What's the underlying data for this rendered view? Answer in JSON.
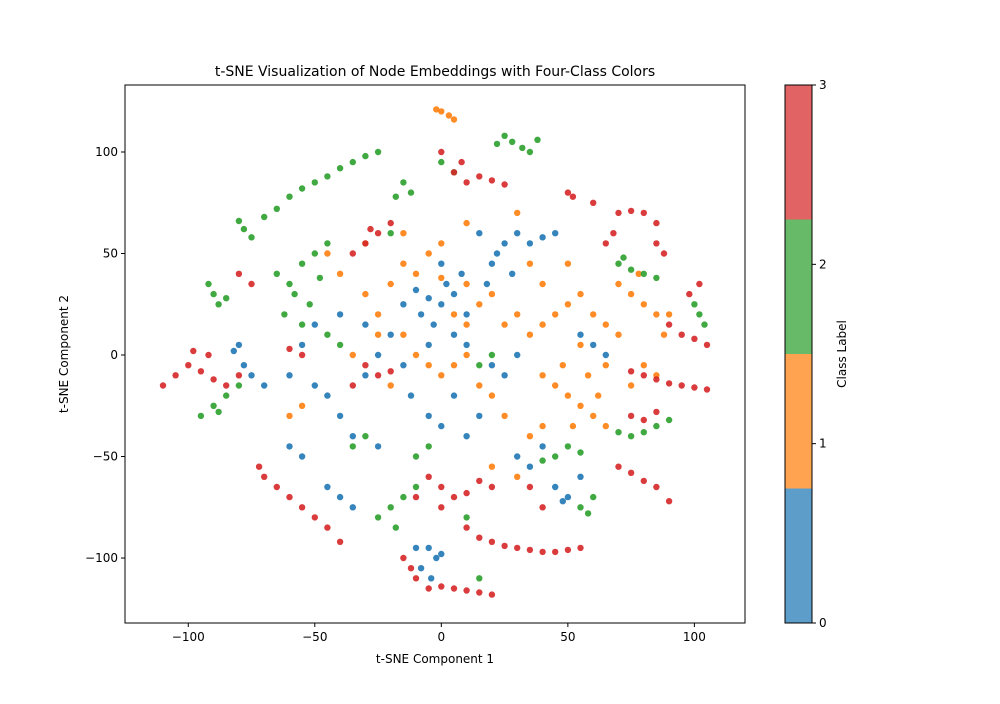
{
  "chart_data": {
    "type": "scatter",
    "title": "t-SNE Visualization of Node Embeddings with Four-Class Colors",
    "xlabel": "t-SNE Component 1",
    "ylabel": "t-SNE Component 2",
    "xlim": [
      -125,
      120
    ],
    "ylim": [
      -132,
      133
    ],
    "x_ticks": [
      -100,
      -50,
      0,
      50,
      100
    ],
    "x_tick_labels": [
      "−100",
      "−50",
      "0",
      "50",
      "100"
    ],
    "y_ticks": [
      -100,
      -50,
      0,
      50,
      100
    ],
    "y_tick_labels": [
      "−100",
      "−50",
      "0",
      "50",
      "100"
    ],
    "grid": false,
    "colorbar": {
      "label": "Class Label",
      "ticks": [
        "0",
        "1",
        "2",
        "3"
      ],
      "colors": [
        "#1f77b4",
        "#ff7f0e",
        "#2ca02c",
        "#d62728"
      ]
    },
    "series": [
      {
        "class": 0,
        "color": "#1f77b4",
        "points": [
          [
            -5,
            28
          ],
          [
            0,
            25
          ],
          [
            -8,
            20
          ],
          [
            5,
            30
          ],
          [
            -10,
            32
          ],
          [
            10,
            20
          ],
          [
            -3,
            15
          ],
          [
            2,
            35
          ],
          [
            -15,
            25
          ],
          [
            8,
            40
          ],
          [
            20,
            45
          ],
          [
            25,
            55
          ],
          [
            30,
            60
          ],
          [
            35,
            55
          ],
          [
            40,
            58
          ],
          [
            15,
            60
          ],
          [
            22,
            50
          ],
          [
            45,
            60
          ],
          [
            28,
            40
          ],
          [
            18,
            35
          ],
          [
            -20,
            10
          ],
          [
            -25,
            0
          ],
          [
            -15,
            -5
          ],
          [
            -30,
            -10
          ],
          [
            -12,
            -20
          ],
          [
            -5,
            -30
          ],
          [
            0,
            -35
          ],
          [
            10,
            -40
          ],
          [
            15,
            -30
          ],
          [
            5,
            -20
          ],
          [
            -35,
            -40
          ],
          [
            -25,
            -45
          ],
          [
            -40,
            -30
          ],
          [
            -45,
            -20
          ],
          [
            -50,
            -15
          ],
          [
            -60,
            -10
          ],
          [
            -55,
            5
          ],
          [
            -50,
            15
          ],
          [
            -40,
            20
          ],
          [
            -30,
            15
          ],
          [
            -80,
            5
          ],
          [
            -78,
            -5
          ],
          [
            -82,
            2
          ],
          [
            -75,
            -10
          ],
          [
            -70,
            -15
          ],
          [
            30,
            -50
          ],
          [
            35,
            -55
          ],
          [
            40,
            -45
          ],
          [
            50,
            -70
          ],
          [
            45,
            -65
          ],
          [
            55,
            -60
          ],
          [
            48,
            -72
          ],
          [
            -5,
            -95
          ],
          [
            -2,
            -100
          ],
          [
            -8,
            -105
          ],
          [
            0,
            -98
          ],
          [
            -4,
            -110
          ],
          [
            -10,
            -95
          ],
          [
            -45,
            -65
          ],
          [
            -40,
            -70
          ],
          [
            -35,
            -75
          ],
          [
            -55,
            -50
          ],
          [
            -60,
            -45
          ],
          [
            60,
            5
          ],
          [
            55,
            10
          ],
          [
            65,
            0
          ],
          [
            25,
            -10
          ],
          [
            20,
            -5
          ],
          [
            30,
            0
          ],
          [
            10,
            5
          ],
          [
            5,
            10
          ],
          [
            -5,
            5
          ],
          [
            0,
            45
          ]
        ]
      },
      {
        "class": 1,
        "color": "#ff7f0e",
        "points": [
          [
            0,
            120
          ],
          [
            3,
            118
          ],
          [
            -2,
            121
          ],
          [
            5,
            116
          ],
          [
            -30,
            30
          ],
          [
            -20,
            35
          ],
          [
            -10,
            40
          ],
          [
            -25,
            20
          ],
          [
            -15,
            45
          ],
          [
            -5,
            50
          ],
          [
            0,
            38
          ],
          [
            10,
            35
          ],
          [
            15,
            25
          ],
          [
            20,
            30
          ],
          [
            25,
            15
          ],
          [
            30,
            20
          ],
          [
            35,
            10
          ],
          [
            40,
            15
          ],
          [
            45,
            20
          ],
          [
            50,
            25
          ],
          [
            55,
            30
          ],
          [
            60,
            20
          ],
          [
            65,
            15
          ],
          [
            70,
            10
          ],
          [
            40,
            -10
          ],
          [
            45,
            -15
          ],
          [
            50,
            -20
          ],
          [
            55,
            -25
          ],
          [
            60,
            -30
          ],
          [
            48,
            -5
          ],
          [
            58,
            -10
          ],
          [
            62,
            -20
          ],
          [
            65,
            -35
          ],
          [
            52,
            -35
          ],
          [
            -10,
            0
          ],
          [
            -5,
            -5
          ],
          [
            0,
            -10
          ],
          [
            5,
            -5
          ],
          [
            10,
            0
          ],
          [
            15,
            -15
          ],
          [
            20,
            -20
          ],
          [
            -20,
            -15
          ],
          [
            -15,
            10
          ],
          [
            -25,
            10
          ],
          [
            75,
            30
          ],
          [
            80,
            25
          ],
          [
            85,
            20
          ],
          [
            70,
            35
          ],
          [
            78,
            40
          ],
          [
            90,
            20
          ],
          [
            88,
            10
          ],
          [
            -15,
            60
          ],
          [
            10,
            65
          ],
          [
            30,
            70
          ],
          [
            35,
            -40
          ],
          [
            40,
            -35
          ],
          [
            30,
            -60
          ],
          [
            20,
            -55
          ],
          [
            -35,
            0
          ],
          [
            80,
            -5
          ],
          [
            85,
            -10
          ],
          [
            75,
            -15
          ],
          [
            0,
            55
          ],
          [
            -40,
            40
          ],
          [
            -45,
            50
          ],
          [
            -30,
            55
          ],
          [
            40,
            35
          ],
          [
            35,
            45
          ],
          [
            25,
            -30
          ],
          [
            -60,
            -30
          ],
          [
            -55,
            -25
          ],
          [
            10,
            15
          ],
          [
            5,
            20
          ],
          [
            50,
            45
          ],
          [
            55,
            5
          ],
          [
            65,
            -5
          ]
        ]
      },
      {
        "class": 2,
        "color": "#2ca02c",
        "points": [
          [
            -60,
            78
          ],
          [
            -55,
            82
          ],
          [
            -50,
            85
          ],
          [
            -45,
            88
          ],
          [
            -40,
            92
          ],
          [
            -35,
            95
          ],
          [
            -30,
            98
          ],
          [
            -25,
            100
          ],
          [
            -65,
            72
          ],
          [
            -70,
            68
          ],
          [
            -80,
            66
          ],
          [
            -78,
            62
          ],
          [
            -75,
            58
          ],
          [
            -90,
            30
          ],
          [
            -88,
            25
          ],
          [
            -92,
            35
          ],
          [
            -85,
            28
          ],
          [
            -65,
            40
          ],
          [
            -60,
            35
          ],
          [
            -55,
            45
          ],
          [
            -50,
            50
          ],
          [
            -45,
            55
          ],
          [
            -58,
            30
          ],
          [
            -52,
            25
          ],
          [
            -48,
            38
          ],
          [
            -62,
            20
          ],
          [
            -55,
            15
          ],
          [
            25,
            108
          ],
          [
            28,
            105
          ],
          [
            32,
            102
          ],
          [
            22,
            104
          ],
          [
            35,
            100
          ],
          [
            38,
            106
          ],
          [
            -15,
            85
          ],
          [
            -12,
            80
          ],
          [
            -18,
            78
          ],
          [
            0,
            95
          ],
          [
            5,
            90
          ],
          [
            70,
            45
          ],
          [
            75,
            42
          ],
          [
            80,
            40
          ],
          [
            85,
            38
          ],
          [
            72,
            48
          ],
          [
            -95,
            -30
          ],
          [
            -90,
            -25
          ],
          [
            -85,
            -20
          ],
          [
            -80,
            -15
          ],
          [
            -88,
            -28
          ],
          [
            -20,
            -75
          ],
          [
            -15,
            -70
          ],
          [
            -10,
            -65
          ],
          [
            -25,
            -80
          ],
          [
            -18,
            -85
          ],
          [
            75,
            -40
          ],
          [
            80,
            -38
          ],
          [
            85,
            -35
          ],
          [
            90,
            -32
          ],
          [
            70,
            -38
          ],
          [
            45,
            -50
          ],
          [
            50,
            -45
          ],
          [
            55,
            -48
          ],
          [
            40,
            -52
          ],
          [
            55,
            -75
          ],
          [
            58,
            -78
          ],
          [
            60,
            -70
          ],
          [
            20,
            0
          ],
          [
            15,
            -5
          ],
          [
            -10,
            -50
          ],
          [
            -5,
            -45
          ],
          [
            -30,
            -40
          ],
          [
            -35,
            -45
          ],
          [
            100,
            25
          ],
          [
            102,
            20
          ],
          [
            104,
            15
          ],
          [
            -45,
            10
          ],
          [
            -40,
            5
          ],
          [
            -20,
            60
          ],
          [
            10,
            -80
          ],
          [
            15,
            -110
          ]
        ]
      },
      {
        "class": 3,
        "color": "#d62728",
        "points": [
          [
            5,
            90
          ],
          [
            10,
            85
          ],
          [
            15,
            88
          ],
          [
            20,
            86
          ],
          [
            25,
            84
          ],
          [
            8,
            95
          ],
          [
            0,
            100
          ],
          [
            -30,
            55
          ],
          [
            -25,
            60
          ],
          [
            -20,
            65
          ],
          [
            -35,
            50
          ],
          [
            -28,
            62
          ],
          [
            70,
            70
          ],
          [
            75,
            71
          ],
          [
            80,
            70
          ],
          [
            85,
            65
          ],
          [
            68,
            60
          ],
          [
            65,
            55
          ],
          [
            85,
            55
          ],
          [
            88,
            50
          ],
          [
            -110,
            -15
          ],
          [
            -105,
            -10
          ],
          [
            -100,
            -5
          ],
          [
            -95,
            -8
          ],
          [
            -90,
            -12
          ],
          [
            -85,
            -15
          ],
          [
            -80,
            -10
          ],
          [
            -98,
            2
          ],
          [
            -92,
            0
          ],
          [
            -70,
            -60
          ],
          [
            -65,
            -65
          ],
          [
            -60,
            -70
          ],
          [
            -55,
            -75
          ],
          [
            -50,
            -80
          ],
          [
            -45,
            -85
          ],
          [
            -40,
            -92
          ],
          [
            -72,
            -55
          ],
          [
            -5,
            -60
          ],
          [
            0,
            -65
          ],
          [
            5,
            -70
          ],
          [
            10,
            -68
          ],
          [
            15,
            -62
          ],
          [
            20,
            -65
          ],
          [
            -10,
            -70
          ],
          [
            0,
            -75
          ],
          [
            10,
            -85
          ],
          [
            15,
            -90
          ],
          [
            20,
            -92
          ],
          [
            25,
            -94
          ],
          [
            30,
            -95
          ],
          [
            35,
            -96
          ],
          [
            40,
            -97
          ],
          [
            45,
            -97
          ],
          [
            50,
            -96
          ],
          [
            55,
            -95
          ],
          [
            -15,
            -100
          ],
          [
            -12,
            -105
          ],
          [
            -10,
            -110
          ],
          [
            -5,
            -115
          ],
          [
            0,
            -114
          ],
          [
            5,
            -115
          ],
          [
            10,
            -116
          ],
          [
            15,
            -117
          ],
          [
            20,
            -118
          ],
          [
            80,
            -10
          ],
          [
            85,
            -12
          ],
          [
            90,
            -14
          ],
          [
            95,
            -15
          ],
          [
            100,
            -16
          ],
          [
            105,
            -17
          ],
          [
            75,
            -8
          ],
          [
            70,
            -55
          ],
          [
            75,
            -58
          ],
          [
            80,
            -62
          ],
          [
            85,
            -65
          ],
          [
            90,
            -72
          ],
          [
            90,
            15
          ],
          [
            95,
            10
          ],
          [
            100,
            8
          ],
          [
            105,
            5
          ],
          [
            98,
            30
          ],
          [
            102,
            35
          ],
          [
            75,
            -30
          ],
          [
            80,
            -32
          ],
          [
            85,
            -28
          ],
          [
            -30,
            -5
          ],
          [
            -25,
            -10
          ],
          [
            -35,
            -15
          ],
          [
            -20,
            -8
          ],
          [
            50,
            80
          ],
          [
            52,
            78
          ],
          [
            60,
            75
          ],
          [
            -60,
            3
          ],
          [
            -55,
            0
          ],
          [
            35,
            -65
          ],
          [
            40,
            -75
          ],
          [
            -80,
            40
          ],
          [
            -75,
            35
          ]
        ]
      }
    ]
  }
}
